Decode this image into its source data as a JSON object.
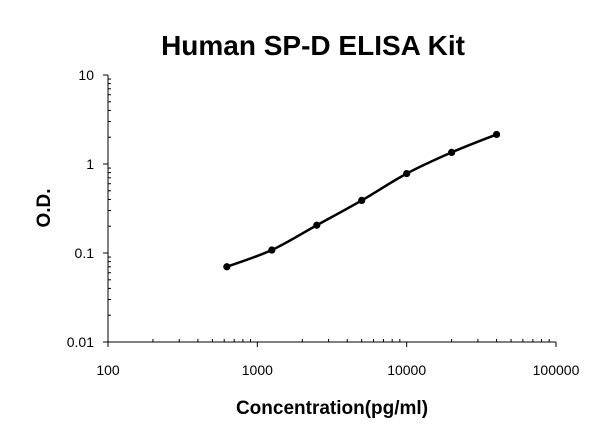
{
  "chart_data": {
    "type": "line",
    "title": "Human SP-D ELISA Kit",
    "xlabel": "Concentration(pg/ml)",
    "ylabel": "O.D.",
    "x_scale": "log",
    "y_scale": "log",
    "xlim": [
      100,
      100000
    ],
    "ylim": [
      0.01,
      10
    ],
    "x_ticks": [
      "100",
      "1000",
      "10000",
      "100000"
    ],
    "y_ticks": [
      "10",
      "1",
      "0.1",
      "0.01"
    ],
    "grid": false,
    "legend": "none",
    "series": [
      {
        "x": [
          625,
          1250,
          2500,
          5000,
          10000,
          20000,
          40000
        ],
        "y": [
          0.07,
          0.108,
          0.205,
          0.39,
          0.78,
          1.35,
          2.15
        ],
        "color": "#000000",
        "marker": "circle",
        "line": "smooth"
      }
    ]
  }
}
